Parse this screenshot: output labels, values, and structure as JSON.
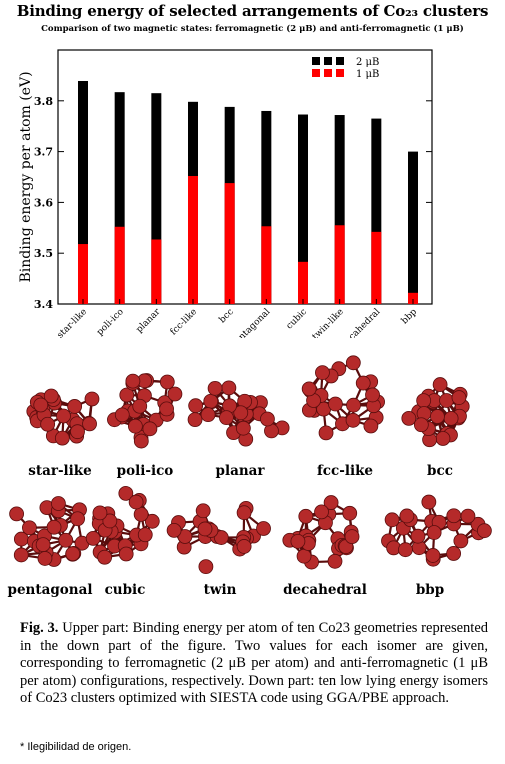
{
  "title": "Binding energy of selected arrangements of Co₂₃ clusters",
  "subtitle": "Comparison of two magnetic states: ferromagnetic (2 μB) and anti-ferromagnetic (1 μB)",
  "chart_data": {
    "type": "bar",
    "categories": [
      "star-like",
      "poli-ico",
      "planar",
      "fcc-like",
      "bcc",
      "pentagonal",
      "cubic",
      "twin-like",
      "decahedral",
      "bbp"
    ],
    "series": [
      {
        "name": "2 μB",
        "color": "#000000",
        "values": [
          3.839,
          3.817,
          3.815,
          3.798,
          3.788,
          3.78,
          3.773,
          3.772,
          3.765,
          3.7
        ]
      },
      {
        "name": "1 μB",
        "color": "#ff0000",
        "values": [
          3.518,
          3.552,
          3.527,
          3.652,
          3.638,
          3.553,
          3.483,
          3.555,
          3.542,
          3.422
        ]
      }
    ],
    "ylabel": "Binding energy per atom (eV)",
    "xlabel": "",
    "ylim": [
      3.4,
      3.9
    ],
    "yticks": [
      "3.4",
      "3.5",
      "3.6",
      "3.7",
      "3.8"
    ],
    "legend_position": "top-right",
    "grid": false
  },
  "isomers": {
    "row1": [
      "star-like",
      "poli-ico",
      "planar",
      "fcc-like",
      "bcc"
    ],
    "row2": [
      "pentagonal",
      "cubic",
      "twin",
      "decahedral",
      "bbp"
    ]
  },
  "colors": {
    "atom": "#b52a2a",
    "bond": "#5a0d0d"
  },
  "caption": {
    "label": "Fig. 3.",
    "text": "Upper part: Binding energy per atom of ten Co23 geometries represented in the down part of the figure. Two values for each isomer are given, corresponding to ferromagnetic (2 μB per atom) and anti-ferromagnetic (1 μB per atom) configurations, respectively. Down part: ten low lying energy isomers of Co23 clusters optimized with SIESTA code using GGA/PBE approach."
  },
  "footnote": "* Ilegibilidad de origen."
}
